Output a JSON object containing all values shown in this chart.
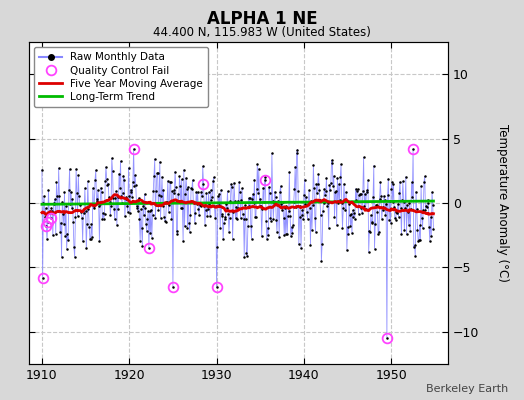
{
  "title": "ALPHA 1 NE",
  "subtitle": "44.400 N, 115.983 W (United States)",
  "ylabel": "Temperature Anomaly (°C)",
  "watermark": "Berkeley Earth",
  "xlim": [
    1908.5,
    1956.5
  ],
  "ylim": [
    -12.5,
    12.5
  ],
  "yticks": [
    -10,
    -5,
    0,
    5,
    10
  ],
  "xticks": [
    1910,
    1920,
    1930,
    1940,
    1950
  ],
  "plot_bg": "#ffffff",
  "fig_bg": "#d8d8d8",
  "grid_color": "#c8c8c8",
  "raw_line_color": "#8888ff",
  "raw_marker_color": "#000000",
  "ma_color": "#dd0000",
  "trend_color": "#00bb00",
  "qc_color": "#ff44ff",
  "seed": 7,
  "year_start": 1910.0,
  "year_end": 1954.9
}
